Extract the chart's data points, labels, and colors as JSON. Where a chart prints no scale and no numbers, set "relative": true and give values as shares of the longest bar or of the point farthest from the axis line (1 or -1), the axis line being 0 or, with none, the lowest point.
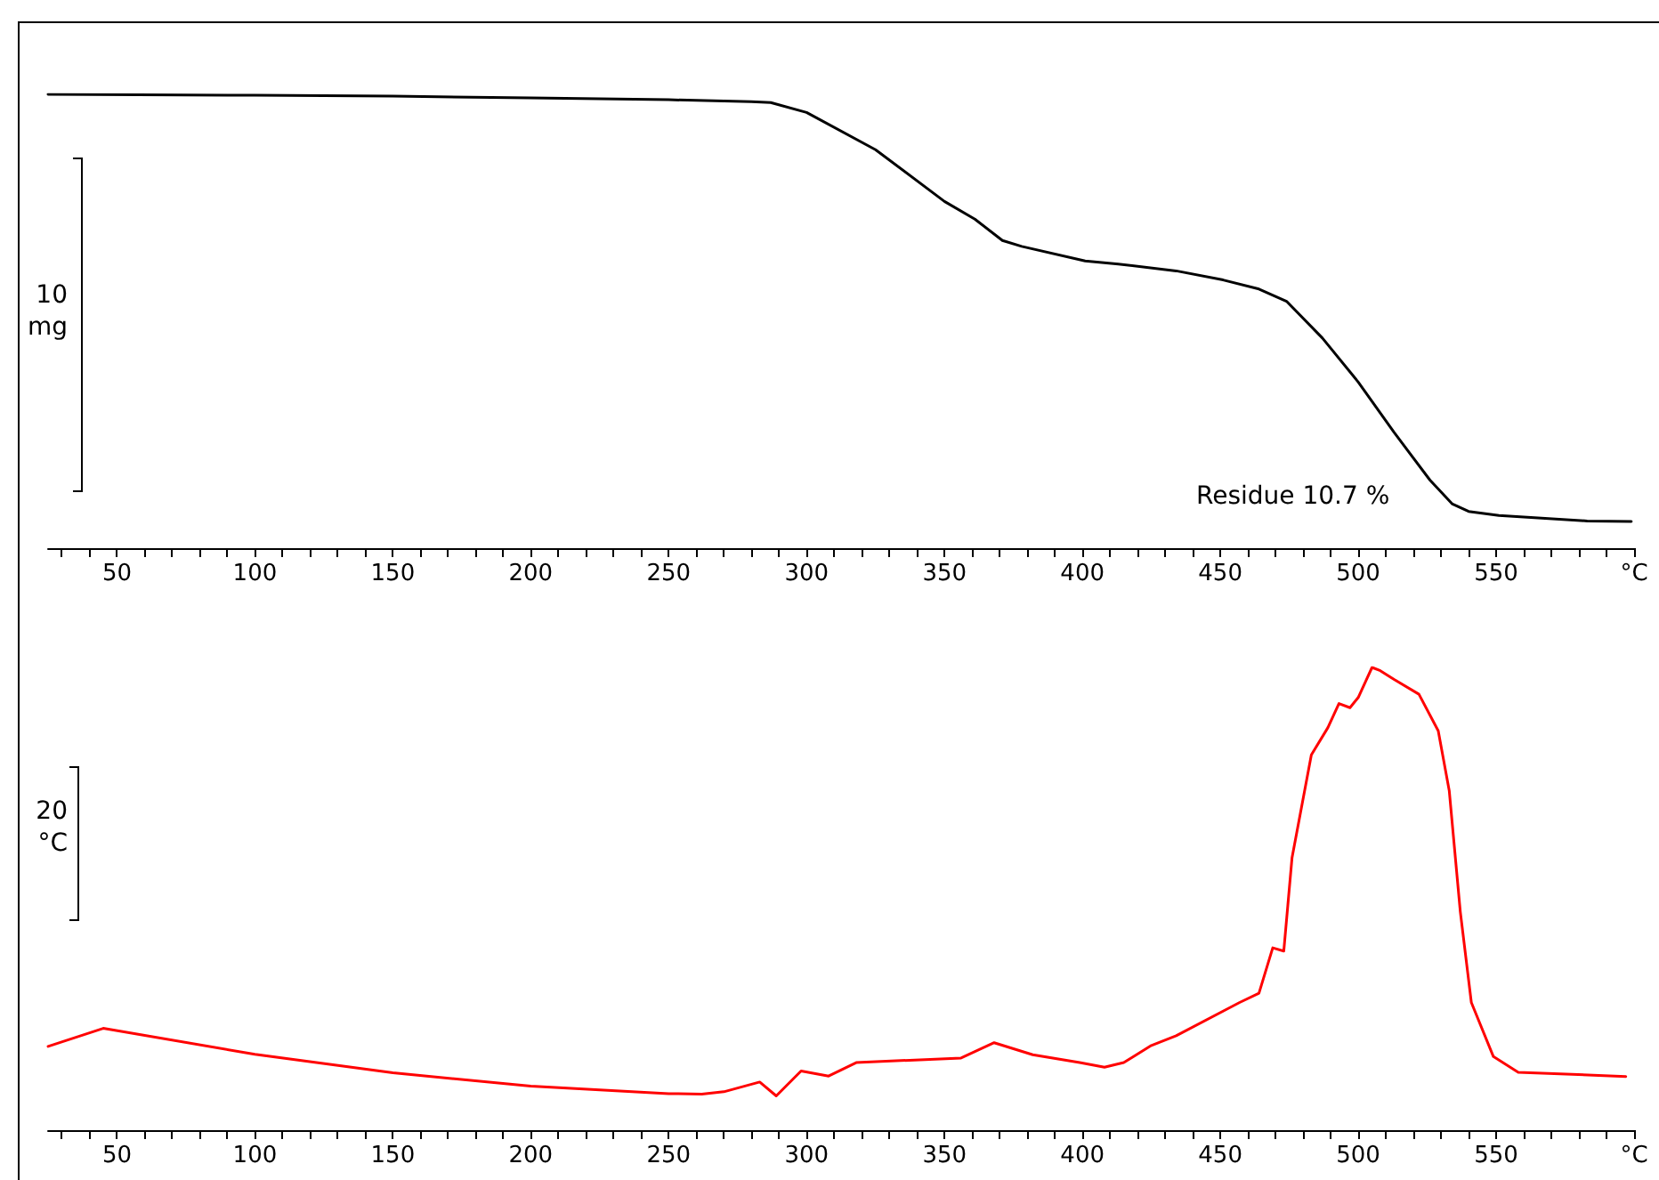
{
  "chart_data": [
    {
      "type": "line",
      "relative": true,
      "marker": "none",
      "line_style": "solid",
      "x": [
        25,
        100,
        150,
        200,
        250,
        280,
        287,
        300,
        325,
        350,
        361,
        371,
        378,
        401,
        413,
        434,
        451,
        464,
        474,
        487,
        500,
        513,
        526,
        534,
        540,
        551,
        583,
        599
      ],
      "series": [
        {
          "color": "#000000",
          "values": [
            1.0,
            0.998,
            0.996,
            0.992,
            0.988,
            0.984,
            0.982,
            0.96,
            0.878,
            0.764,
            0.725,
            0.678,
            0.665,
            0.633,
            0.626,
            0.611,
            0.591,
            0.571,
            0.544,
            0.463,
            0.366,
            0.255,
            0.15,
            0.098,
            0.081,
            0.072,
            0.06,
            0.059
          ]
        }
      ],
      "xlim": [
        25,
        600
      ],
      "xticks": [
        {
          "value": 30,
          "label": null
        },
        {
          "value": 40,
          "label": null
        },
        50,
        {
          "value": 60,
          "label": null
        },
        {
          "value": 70,
          "label": null
        },
        {
          "value": 80,
          "label": null
        },
        {
          "value": 90,
          "label": null
        },
        100,
        {
          "value": 110,
          "label": null
        },
        {
          "value": 120,
          "label": null
        },
        {
          "value": 130,
          "label": null
        },
        {
          "value": 140,
          "label": null
        },
        150,
        {
          "value": 160,
          "label": null
        },
        {
          "value": 170,
          "label": null
        },
        {
          "value": 180,
          "label": null
        },
        {
          "value": 190,
          "label": null
        },
        200,
        {
          "value": 210,
          "label": null
        },
        {
          "value": 220,
          "label": null
        },
        {
          "value": 230,
          "label": null
        },
        {
          "value": 240,
          "label": null
        },
        250,
        {
          "value": 260,
          "label": null
        },
        {
          "value": 270,
          "label": null
        },
        {
          "value": 280,
          "label": null
        },
        {
          "value": 290,
          "label": null
        },
        300,
        {
          "value": 310,
          "label": null
        },
        {
          "value": 320,
          "label": null
        },
        {
          "value": 330,
          "label": null
        },
        {
          "value": 340,
          "label": null
        },
        350,
        {
          "value": 360,
          "label": null
        },
        {
          "value": 370,
          "label": null
        },
        {
          "value": 380,
          "label": null
        },
        {
          "value": 390,
          "label": null
        },
        400,
        {
          "value": 410,
          "label": null
        },
        {
          "value": 420,
          "label": null
        },
        {
          "value": 430,
          "label": null
        },
        {
          "value": 440,
          "label": null
        },
        450,
        {
          "value": 460,
          "label": null
        },
        {
          "value": 470,
          "label": null
        },
        {
          "value": 480,
          "label": null
        },
        {
          "value": 490,
          "label": null
        },
        500,
        {
          "value": 510,
          "label": null
        },
        {
          "value": 520,
          "label": null
        },
        {
          "value": 530,
          "label": null
        },
        {
          "value": 540,
          "label": null
        },
        550,
        {
          "value": 560,
          "label": null
        },
        {
          "value": 570,
          "label": null
        },
        {
          "value": 580,
          "label": null
        },
        {
          "value": 590,
          "label": null
        },
        {
          "value": 600,
          "label": "°C"
        }
      ],
      "annotations": [
        "10 mg",
        "Residue 10.7 %"
      ]
    },
    {
      "type": "line",
      "relative": true,
      "marker": "none",
      "line_style": "solid",
      "x": [
        25,
        45,
        100,
        150,
        200,
        250,
        262,
        270,
        283,
        289,
        298,
        308,
        318,
        356,
        368,
        382,
        399,
        408,
        415,
        425,
        434,
        457,
        464,
        469,
        473,
        476,
        483,
        489,
        493,
        497,
        500,
        505,
        508,
        513,
        522,
        529,
        533,
        537,
        541,
        549,
        558,
        597
      ],
      "series": [
        {
          "color": "#ff0000",
          "values": [
            0.181,
            0.22,
            0.164,
            0.124,
            0.095,
            0.079,
            0.078,
            0.083,
            0.104,
            0.074,
            0.128,
            0.117,
            0.146,
            0.156,
            0.189,
            0.163,
            0.146,
            0.136,
            0.146,
            0.183,
            0.204,
            0.276,
            0.296,
            0.394,
            0.387,
            0.589,
            0.811,
            0.87,
            0.922,
            0.913,
            0.935,
            1.0,
            0.993,
            0.974,
            0.942,
            0.863,
            0.733,
            0.472,
            0.276,
            0.159,
            0.125,
            0.116
          ]
        }
      ],
      "xlim": [
        25,
        600
      ],
      "xticks": [
        {
          "value": 30,
          "label": null
        },
        {
          "value": 40,
          "label": null
        },
        50,
        {
          "value": 60,
          "label": null
        },
        {
          "value": 70,
          "label": null
        },
        {
          "value": 80,
          "label": null
        },
        {
          "value": 90,
          "label": null
        },
        100,
        {
          "value": 110,
          "label": null
        },
        {
          "value": 120,
          "label": null
        },
        {
          "value": 130,
          "label": null
        },
        {
          "value": 140,
          "label": null
        },
        150,
        {
          "value": 160,
          "label": null
        },
        {
          "value": 170,
          "label": null
        },
        {
          "value": 180,
          "label": null
        },
        {
          "value": 190,
          "label": null
        },
        200,
        {
          "value": 210,
          "label": null
        },
        {
          "value": 220,
          "label": null
        },
        {
          "value": 230,
          "label": null
        },
        {
          "value": 240,
          "label": null
        },
        250,
        {
          "value": 260,
          "label": null
        },
        {
          "value": 270,
          "label": null
        },
        {
          "value": 280,
          "label": null
        },
        {
          "value": 290,
          "label": null
        },
        300,
        {
          "value": 310,
          "label": null
        },
        {
          "value": 320,
          "label": null
        },
        {
          "value": 330,
          "label": null
        },
        {
          "value": 340,
          "label": null
        },
        350,
        {
          "value": 360,
          "label": null
        },
        {
          "value": 370,
          "label": null
        },
        {
          "value": 380,
          "label": null
        },
        {
          "value": 390,
          "label": null
        },
        400,
        {
          "value": 410,
          "label": null
        },
        {
          "value": 420,
          "label": null
        },
        {
          "value": 430,
          "label": null
        },
        {
          "value": 440,
          "label": null
        },
        450,
        {
          "value": 460,
          "label": null
        },
        {
          "value": 470,
          "label": null
        },
        {
          "value": 480,
          "label": null
        },
        {
          "value": 490,
          "label": null
        },
        500,
        {
          "value": 510,
          "label": null
        },
        {
          "value": 520,
          "label": null
        },
        {
          "value": 530,
          "label": null
        },
        {
          "value": 540,
          "label": null
        },
        550,
        {
          "value": 560,
          "label": null
        },
        {
          "value": 570,
          "label": null
        },
        {
          "value": 580,
          "label": null
        },
        {
          "value": 590,
          "label": null
        },
        {
          "value": 600,
          "label": "°C"
        }
      ],
      "annotations": [
        "20 °C"
      ]
    }
  ]
}
